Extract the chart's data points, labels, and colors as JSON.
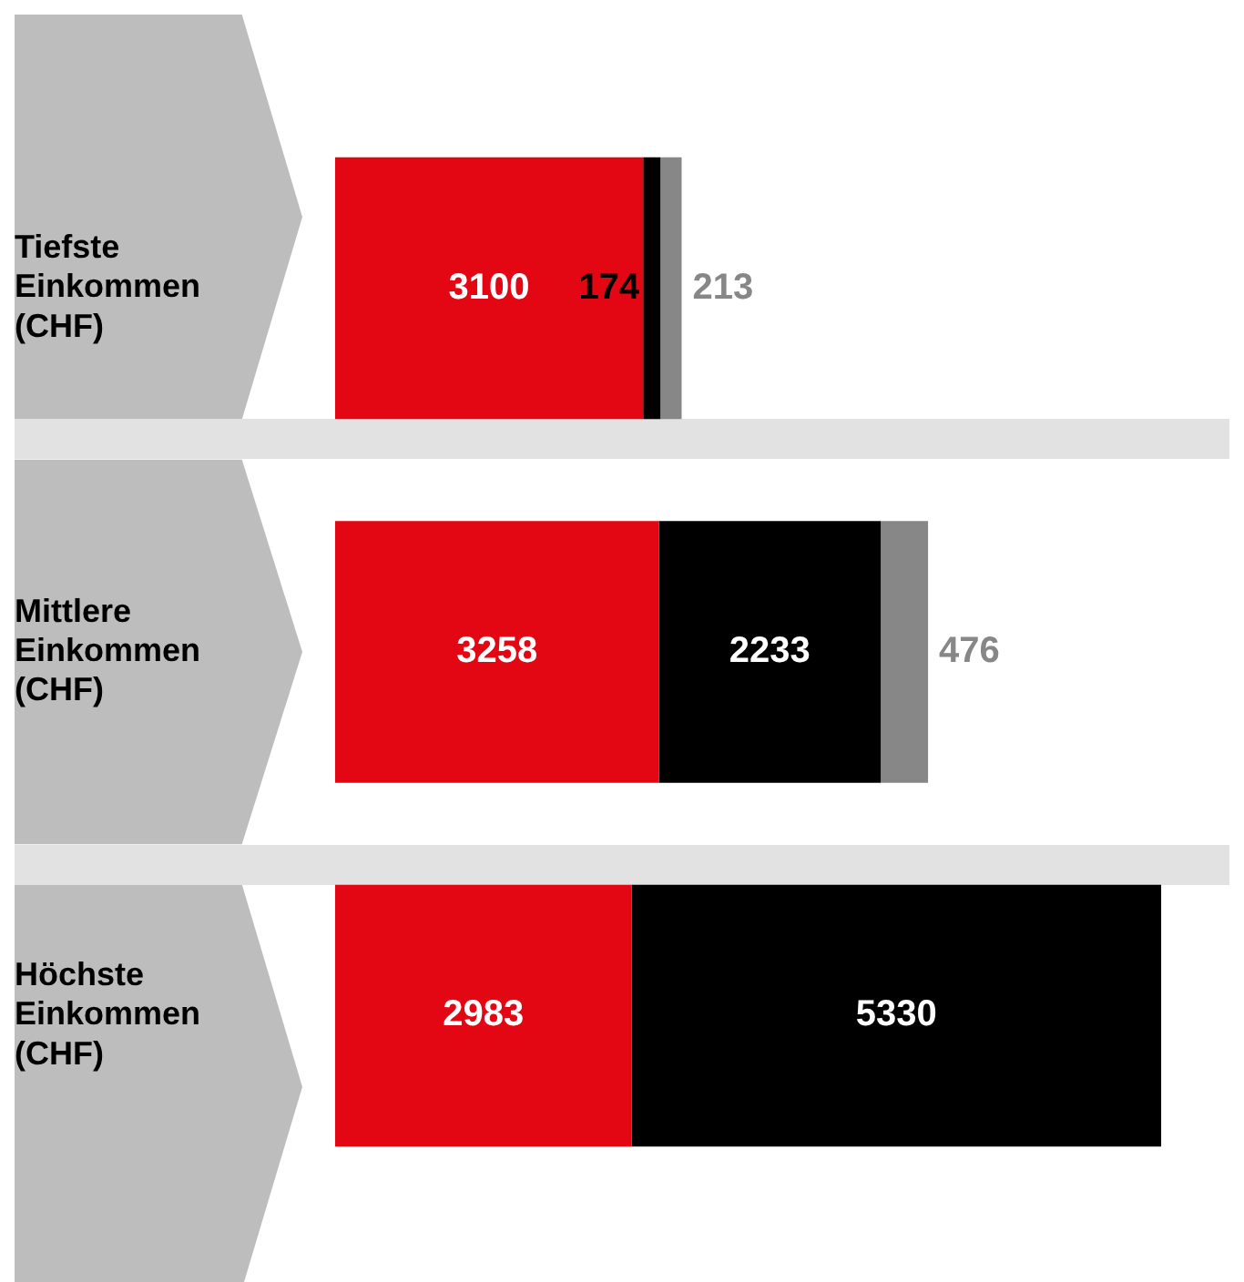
{
  "chart_data": {
    "type": "bar",
    "orientation": "horizontal",
    "stacked": true,
    "categories": [
      "Tiefste Einkommen (CHF)",
      "Mittlere Einkommen (CHF)",
      "Höchste Einkommen (CHF)"
    ],
    "series": [
      {
        "color": "#e30613",
        "values": [
          3100,
          3258,
          2983
        ]
      },
      {
        "color": "#000000",
        "values": [
          174,
          2233,
          5330
        ]
      },
      {
        "color": "#878787",
        "values": [
          213,
          476,
          null
        ]
      }
    ],
    "data_labels": true,
    "tick_labels": "y",
    "grid": false,
    "legend": false
  }
}
